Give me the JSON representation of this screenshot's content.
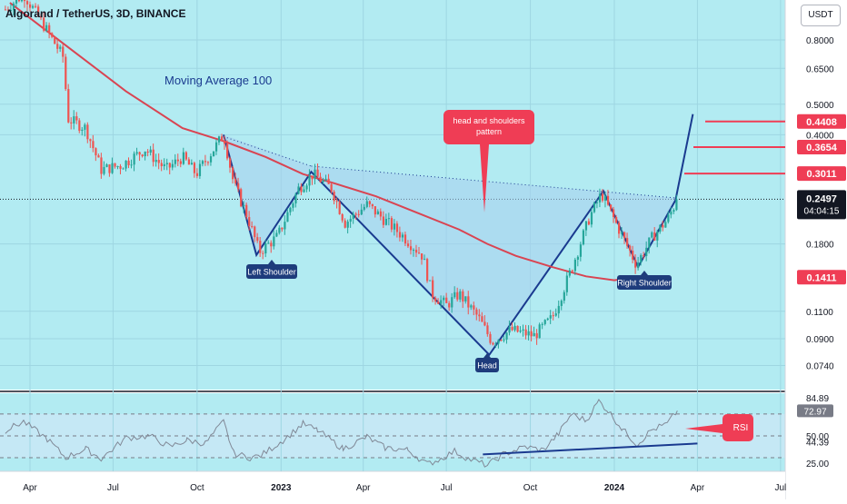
{
  "header": {
    "title": "Algorand / TetherUS, 3D, BINANCE",
    "currency": "USDT"
  },
  "colors": {
    "background": "#b2ebf2",
    "candle_up": "#26a69a",
    "candle_down": "#ef5350",
    "moving_average": "#d94452",
    "pattern_line": "#1a3a8f",
    "pattern_fill": "#a7d0ee",
    "label_navy": "#1e3c7c",
    "callout_red": "#ef3d55",
    "rsi_line": "#808896",
    "current_price": "#131722"
  },
  "annotations": {
    "moving_average_label": "Moving Average 100",
    "callout": "head and shoulders pattern",
    "left_shoulder": "Left Shoulder",
    "head": "Head",
    "right_shoulder": "Right Shoulder",
    "rsi_callout": "RSI"
  },
  "chart_data": [
    {
      "type": "candlestick",
      "title": "Algorand / TetherUS, 3D, BINANCE",
      "scale": "log",
      "x_tick_labels": [
        "Apr",
        "Jul",
        "Oct",
        "2023",
        "Apr",
        "Jul",
        "Oct",
        "2024",
        "Apr",
        "Jul"
      ],
      "y_tick_labels": [
        "0.8000",
        "0.6500",
        "0.5000",
        "0.4000",
        "0.1800",
        "0.1100",
        "0.0900",
        "0.0740"
      ],
      "price_tags": [
        {
          "label": "0.4408",
          "style": "red"
        },
        {
          "label": "0.3654",
          "style": "red"
        },
        {
          "label": "0.3011",
          "style": "red"
        },
        {
          "label": "0.2497",
          "style": "current",
          "countdown": "04:04:15"
        },
        {
          "label": "0.1411",
          "style": "red"
        }
      ],
      "current_price": 0.2497,
      "target_levels": [
        0.4408,
        0.3654,
        0.3011
      ],
      "moving_average": {
        "name": "Moving Average 100",
        "points": [
          [
            "2022-03-10",
            1.05
          ],
          [
            "2022-05-15",
            0.75
          ],
          [
            "2022-07-15",
            0.55
          ],
          [
            "2022-09-15",
            0.42
          ],
          [
            "2022-11-01",
            0.38
          ],
          [
            "2022-12-15",
            0.34
          ],
          [
            "2023-01-25",
            0.3
          ],
          [
            "2023-03-01",
            0.28
          ],
          [
            "2023-04-15",
            0.255
          ],
          [
            "2023-06-01",
            0.225
          ],
          [
            "2023-07-15",
            0.2
          ],
          [
            "2023-08-15",
            0.18
          ],
          [
            "2023-09-15",
            0.165
          ],
          [
            "2023-10-25",
            0.152
          ],
          [
            "2023-12-01",
            0.142
          ],
          [
            "2024-01-01",
            0.138
          ],
          [
            "2024-01-22",
            0.1411
          ]
        ]
      },
      "pattern": {
        "name": "head and shoulders pattern",
        "points": [
          [
            "2022-10-30",
            0.4
          ],
          [
            "2022-12-05",
            0.166
          ],
          [
            "2023-02-03",
            0.305
          ],
          [
            "2023-08-17",
            0.08
          ],
          [
            "2023-12-20",
            0.265
          ],
          [
            "2024-01-27",
            0.152
          ],
          [
            "2024-03-08",
            0.248
          ],
          [
            "2024-03-27",
            0.465
          ]
        ],
        "neckline": [
          [
            "2023-02-03",
            0.318
          ],
          [
            "2024-03-08",
            0.252
          ]
        ]
      },
      "price_path": [
        [
          "2022-03-05",
          1.0
        ],
        [
          "2022-03-25",
          1.12
        ],
        [
          "2022-04-15",
          0.9
        ],
        [
          "2022-05-08",
          0.7
        ],
        [
          "2022-05-12",
          0.45
        ],
        [
          "2022-06-01",
          0.42
        ],
        [
          "2022-06-18",
          0.31
        ],
        [
          "2022-07-10",
          0.32
        ],
        [
          "2022-08-05",
          0.36
        ],
        [
          "2022-08-28",
          0.31
        ],
        [
          "2022-09-15",
          0.34
        ],
        [
          "2022-09-30",
          0.3
        ],
        [
          "2022-10-10",
          0.33
        ],
        [
          "2022-10-30",
          0.4
        ],
        [
          "2022-11-10",
          0.28
        ],
        [
          "2022-11-25",
          0.22
        ],
        [
          "2022-12-08",
          0.17
        ],
        [
          "2022-12-28",
          0.19
        ],
        [
          "2023-01-20",
          0.27
        ],
        [
          "2023-02-05",
          0.3
        ],
        [
          "2023-02-25",
          0.27
        ],
        [
          "2023-03-12",
          0.21
        ],
        [
          "2023-04-05",
          0.24
        ],
        [
          "2023-04-20",
          0.22
        ],
        [
          "2023-05-15",
          0.19
        ],
        [
          "2023-06-05",
          0.165
        ],
        [
          "2023-06-15",
          0.125
        ],
        [
          "2023-07-01",
          0.115
        ],
        [
          "2023-07-15",
          0.125
        ],
        [
          "2023-08-05",
          0.105
        ],
        [
          "2023-08-20",
          0.088
        ],
        [
          "2023-09-10",
          0.096
        ],
        [
          "2023-10-05",
          0.092
        ],
        [
          "2023-10-25",
          0.105
        ],
        [
          "2023-11-15",
          0.15
        ],
        [
          "2023-12-05",
          0.22
        ],
        [
          "2023-12-18",
          0.26
        ],
        [
          "2024-01-08",
          0.195
        ],
        [
          "2024-01-25",
          0.155
        ],
        [
          "2024-02-12",
          0.19
        ],
        [
          "2024-02-28",
          0.215
        ],
        [
          "2024-03-10",
          0.2497
        ]
      ]
    },
    {
      "type": "line",
      "title": "RSI",
      "y_tick_labels": [
        "84.89",
        "72.97",
        "50.00",
        "44.39",
        "25.00"
      ],
      "reference_levels": [
        70,
        50,
        30
      ],
      "current_value": 72.97,
      "trendline": [
        [
          "2023-08-10",
          33
        ],
        [
          "2024-04-01",
          43
        ]
      ],
      "points": [
        [
          "2022-03-05",
          55
        ],
        [
          "2022-03-25",
          63
        ],
        [
          "2022-04-20",
          47
        ],
        [
          "2022-05-10",
          30
        ],
        [
          "2022-06-01",
          38
        ],
        [
          "2022-06-18",
          29
        ],
        [
          "2022-07-15",
          48
        ],
        [
          "2022-08-10",
          50
        ],
        [
          "2022-09-01",
          40
        ],
        [
          "2022-09-20",
          46
        ],
        [
          "2022-10-10",
          43
        ],
        [
          "2022-10-30",
          63
        ],
        [
          "2022-11-10",
          34
        ],
        [
          "2022-11-28",
          30
        ],
        [
          "2022-12-10",
          32
        ],
        [
          "2023-01-05",
          47
        ],
        [
          "2023-01-25",
          61
        ],
        [
          "2023-02-10",
          55
        ],
        [
          "2023-03-10",
          38
        ],
        [
          "2023-04-05",
          49
        ],
        [
          "2023-04-25",
          39
        ],
        [
          "2023-05-20",
          37
        ],
        [
          "2023-06-10",
          24
        ],
        [
          "2023-06-25",
          29
        ],
        [
          "2023-07-10",
          36
        ],
        [
          "2023-07-25",
          29
        ],
        [
          "2023-08-15",
          23
        ],
        [
          "2023-09-01",
          33
        ],
        [
          "2023-09-25",
          40
        ],
        [
          "2023-10-15",
          37
        ],
        [
          "2023-11-01",
          52
        ],
        [
          "2023-11-15",
          70
        ],
        [
          "2023-12-01",
          64
        ],
        [
          "2023-12-15",
          82
        ],
        [
          "2023-12-25",
          73
        ],
        [
          "2024-01-10",
          56
        ],
        [
          "2024-01-26",
          42
        ],
        [
          "2024-02-10",
          55
        ],
        [
          "2024-02-28",
          61
        ],
        [
          "2024-03-10",
          72.97
        ]
      ]
    }
  ]
}
